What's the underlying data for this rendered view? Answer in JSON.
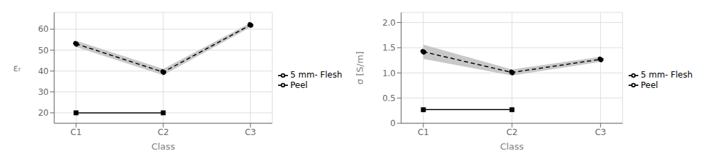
{
  "chart_data": [
    {
      "type": "line",
      "xlabel": "Class",
      "ylabel": "εᵣ",
      "x": [
        0,
        1,
        2
      ],
      "xlim": [
        -0.25,
        2.25
      ],
      "xticks": [
        {
          "value": 0,
          "label": "C1"
        },
        {
          "value": 1,
          "label": "C2"
        },
        {
          "value": 2,
          "label": "C3"
        }
      ],
      "ylim": [
        15,
        68
      ],
      "yticks": [
        20,
        30,
        40,
        50,
        60
      ],
      "grid": true,
      "legend": "right",
      "series": [
        {
          "type": "area",
          "color": "#c8c8c8",
          "lower": [
            51.5,
            38.0,
            61.0
          ],
          "upper": [
            54.5,
            41.0,
            63.0
          ]
        },
        {
          "type": "line",
          "name": "Peel",
          "color": "black",
          "marker": "square",
          "line_style": "solid",
          "values": [
            20,
            20,
            null
          ]
        },
        {
          "type": "line",
          "name": "5 mm- Flesh",
          "color": "black",
          "marker": "circle",
          "line_style": "dashed",
          "values": [
            53,
            39.5,
            62
          ]
        }
      ]
    },
    {
      "type": "line",
      "xlabel": "Class",
      "ylabel": "σ [S/m]",
      "x": [
        0,
        1,
        2
      ],
      "xlim": [
        -0.25,
        2.25
      ],
      "xticks": [
        {
          "value": 0,
          "label": "C1"
        },
        {
          "value": 1,
          "label": "C2"
        },
        {
          "value": 2,
          "label": "C3"
        }
      ],
      "ylim": [
        0,
        2.2
      ],
      "yticks": [
        0,
        0.5,
        {
          "value": 1,
          "label": "1.0"
        },
        1.5,
        {
          "value": 2,
          "label": "2.0"
        }
      ],
      "grid": true,
      "legend": "right",
      "series": [
        {
          "type": "area",
          "color": "#c8c8c8",
          "lower": [
            1.28,
            0.95,
            1.22
          ],
          "upper": [
            1.56,
            1.07,
            1.32
          ]
        },
        {
          "type": "line",
          "name": "Peel",
          "color": "black",
          "marker": "square",
          "line_style": "solid",
          "values": [
            0.27,
            0.27,
            null
          ]
        },
        {
          "type": "line",
          "name": "5 mm- Flesh",
          "color": "black",
          "marker": "circle",
          "line_style": "dashed",
          "values": [
            1.42,
            1.01,
            1.27
          ]
        }
      ]
    }
  ]
}
